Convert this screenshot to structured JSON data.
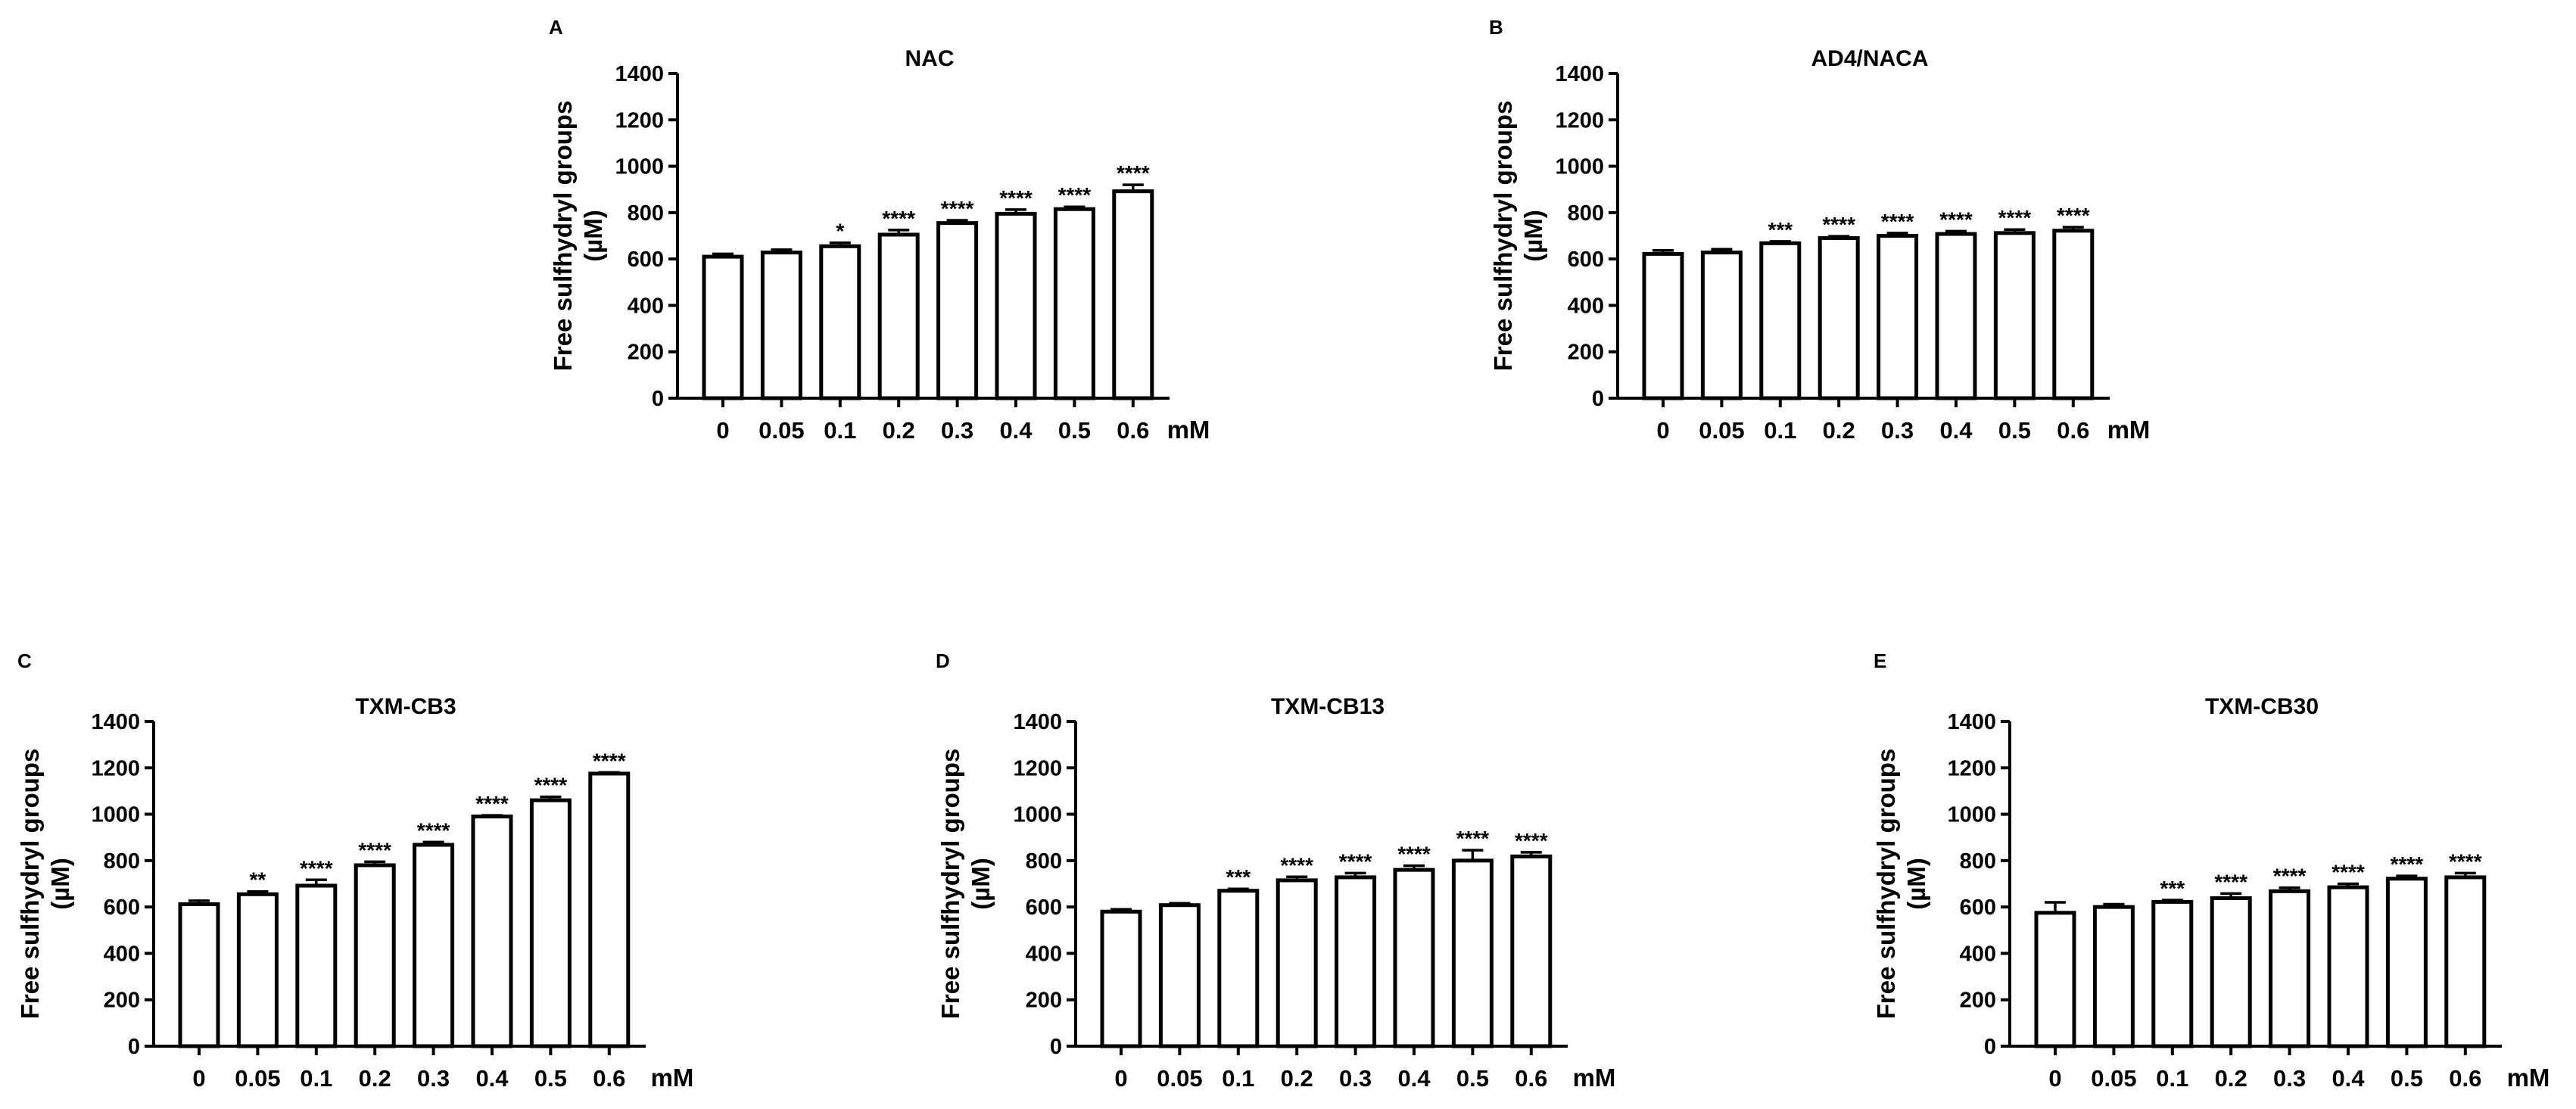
{
  "chart_data": [
    {
      "type": "bar",
      "panel": "A",
      "title": "NAC",
      "ylabel_line1": "Free sulfhydryl groups",
      "ylabel_line2": "(µM)",
      "xunit": "mM",
      "ylim": [
        0,
        1400
      ],
      "yticks": [
        0,
        200,
        400,
        600,
        800,
        1000,
        1200,
        1400
      ],
      "categories": [
        "0",
        "0.05",
        "0.1",
        "0.2",
        "0.3",
        "0.4",
        "0.5",
        "0.6"
      ],
      "values": [
        610,
        628,
        655,
        705,
        755,
        795,
        815,
        892
      ],
      "errors": [
        12,
        12,
        15,
        20,
        12,
        18,
        10,
        28
      ],
      "significance": [
        "",
        "",
        "*",
        "****",
        "****",
        "****",
        "****",
        "****"
      ]
    },
    {
      "type": "bar",
      "panel": "B",
      "title": "AD4/NACA",
      "ylabel_line1": "Free sulfhydryl groups",
      "ylabel_line2": "(µM)",
      "xunit": "mM",
      "ylim": [
        0,
        1400
      ],
      "yticks": [
        0,
        200,
        400,
        600,
        800,
        1000,
        1200,
        1400
      ],
      "categories": [
        "0",
        "0.05",
        "0.1",
        "0.2",
        "0.3",
        "0.4",
        "0.5",
        "0.6"
      ],
      "values": [
        622,
        628,
        668,
        690,
        700,
        708,
        712,
        722
      ],
      "errors": [
        15,
        14,
        8,
        8,
        12,
        12,
        15,
        15
      ],
      "significance": [
        "",
        "",
        "***",
        "****",
        "****",
        "****",
        "****",
        "****"
      ]
    },
    {
      "type": "bar",
      "panel": "C",
      "title": "TXM-CB3",
      "ylabel_line1": "Free sulfhydryl groups",
      "ylabel_line2": "(µM)",
      "xunit": "mM",
      "ylim": [
        0,
        1400
      ],
      "yticks": [
        0,
        200,
        400,
        600,
        800,
        1000,
        1200,
        1400
      ],
      "categories": [
        "0",
        "0.05",
        "0.1",
        "0.2",
        "0.3",
        "0.4",
        "0.5",
        "0.6"
      ],
      "values": [
        612,
        655,
        692,
        780,
        868,
        990,
        1060,
        1175
      ],
      "errors": [
        15,
        12,
        25,
        15,
        12,
        5,
        15,
        5
      ],
      "significance": [
        "",
        "**",
        "****",
        "****",
        "****",
        "****",
        "****",
        "****"
      ]
    },
    {
      "type": "bar",
      "panel": "D",
      "title": "TXM-CB13",
      "ylabel_line1": "Free sulfhydryl groups",
      "ylabel_line2": "(µM)",
      "xunit": "mM",
      "ylim": [
        0,
        1400
      ],
      "yticks": [
        0,
        200,
        400,
        600,
        800,
        1000,
        1200,
        1400
      ],
      "categories": [
        "0",
        "0.05",
        "0.1",
        "0.2",
        "0.3",
        "0.4",
        "0.5",
        "0.6"
      ],
      "values": [
        580,
        608,
        670,
        715,
        728,
        760,
        800,
        818
      ],
      "errors": [
        10,
        8,
        8,
        15,
        18,
        18,
        45,
        18
      ],
      "significance": [
        "",
        "",
        "***",
        "****",
        "****",
        "****",
        "****",
        "****"
      ]
    },
    {
      "type": "bar",
      "panel": "E",
      "title": "TXM-CB30",
      "ylabel_line1": "Free sulfhydryl groups",
      "ylabel_line2": "(µM)",
      "xunit": "mM",
      "ylim": [
        0,
        1400
      ],
      "yticks": [
        0,
        200,
        400,
        600,
        800,
        1000,
        1200,
        1400
      ],
      "categories": [
        "0",
        "0.05",
        "0.1",
        "0.2",
        "0.3",
        "0.4",
        "0.5",
        "0.6"
      ],
      "values": [
        575,
        600,
        622,
        638,
        668,
        685,
        722,
        728
      ],
      "errors": [
        45,
        12,
        8,
        20,
        15,
        15,
        12,
        18
      ],
      "significance": [
        "",
        "",
        "***",
        "****",
        "****",
        "****",
        "****",
        "****"
      ]
    }
  ]
}
